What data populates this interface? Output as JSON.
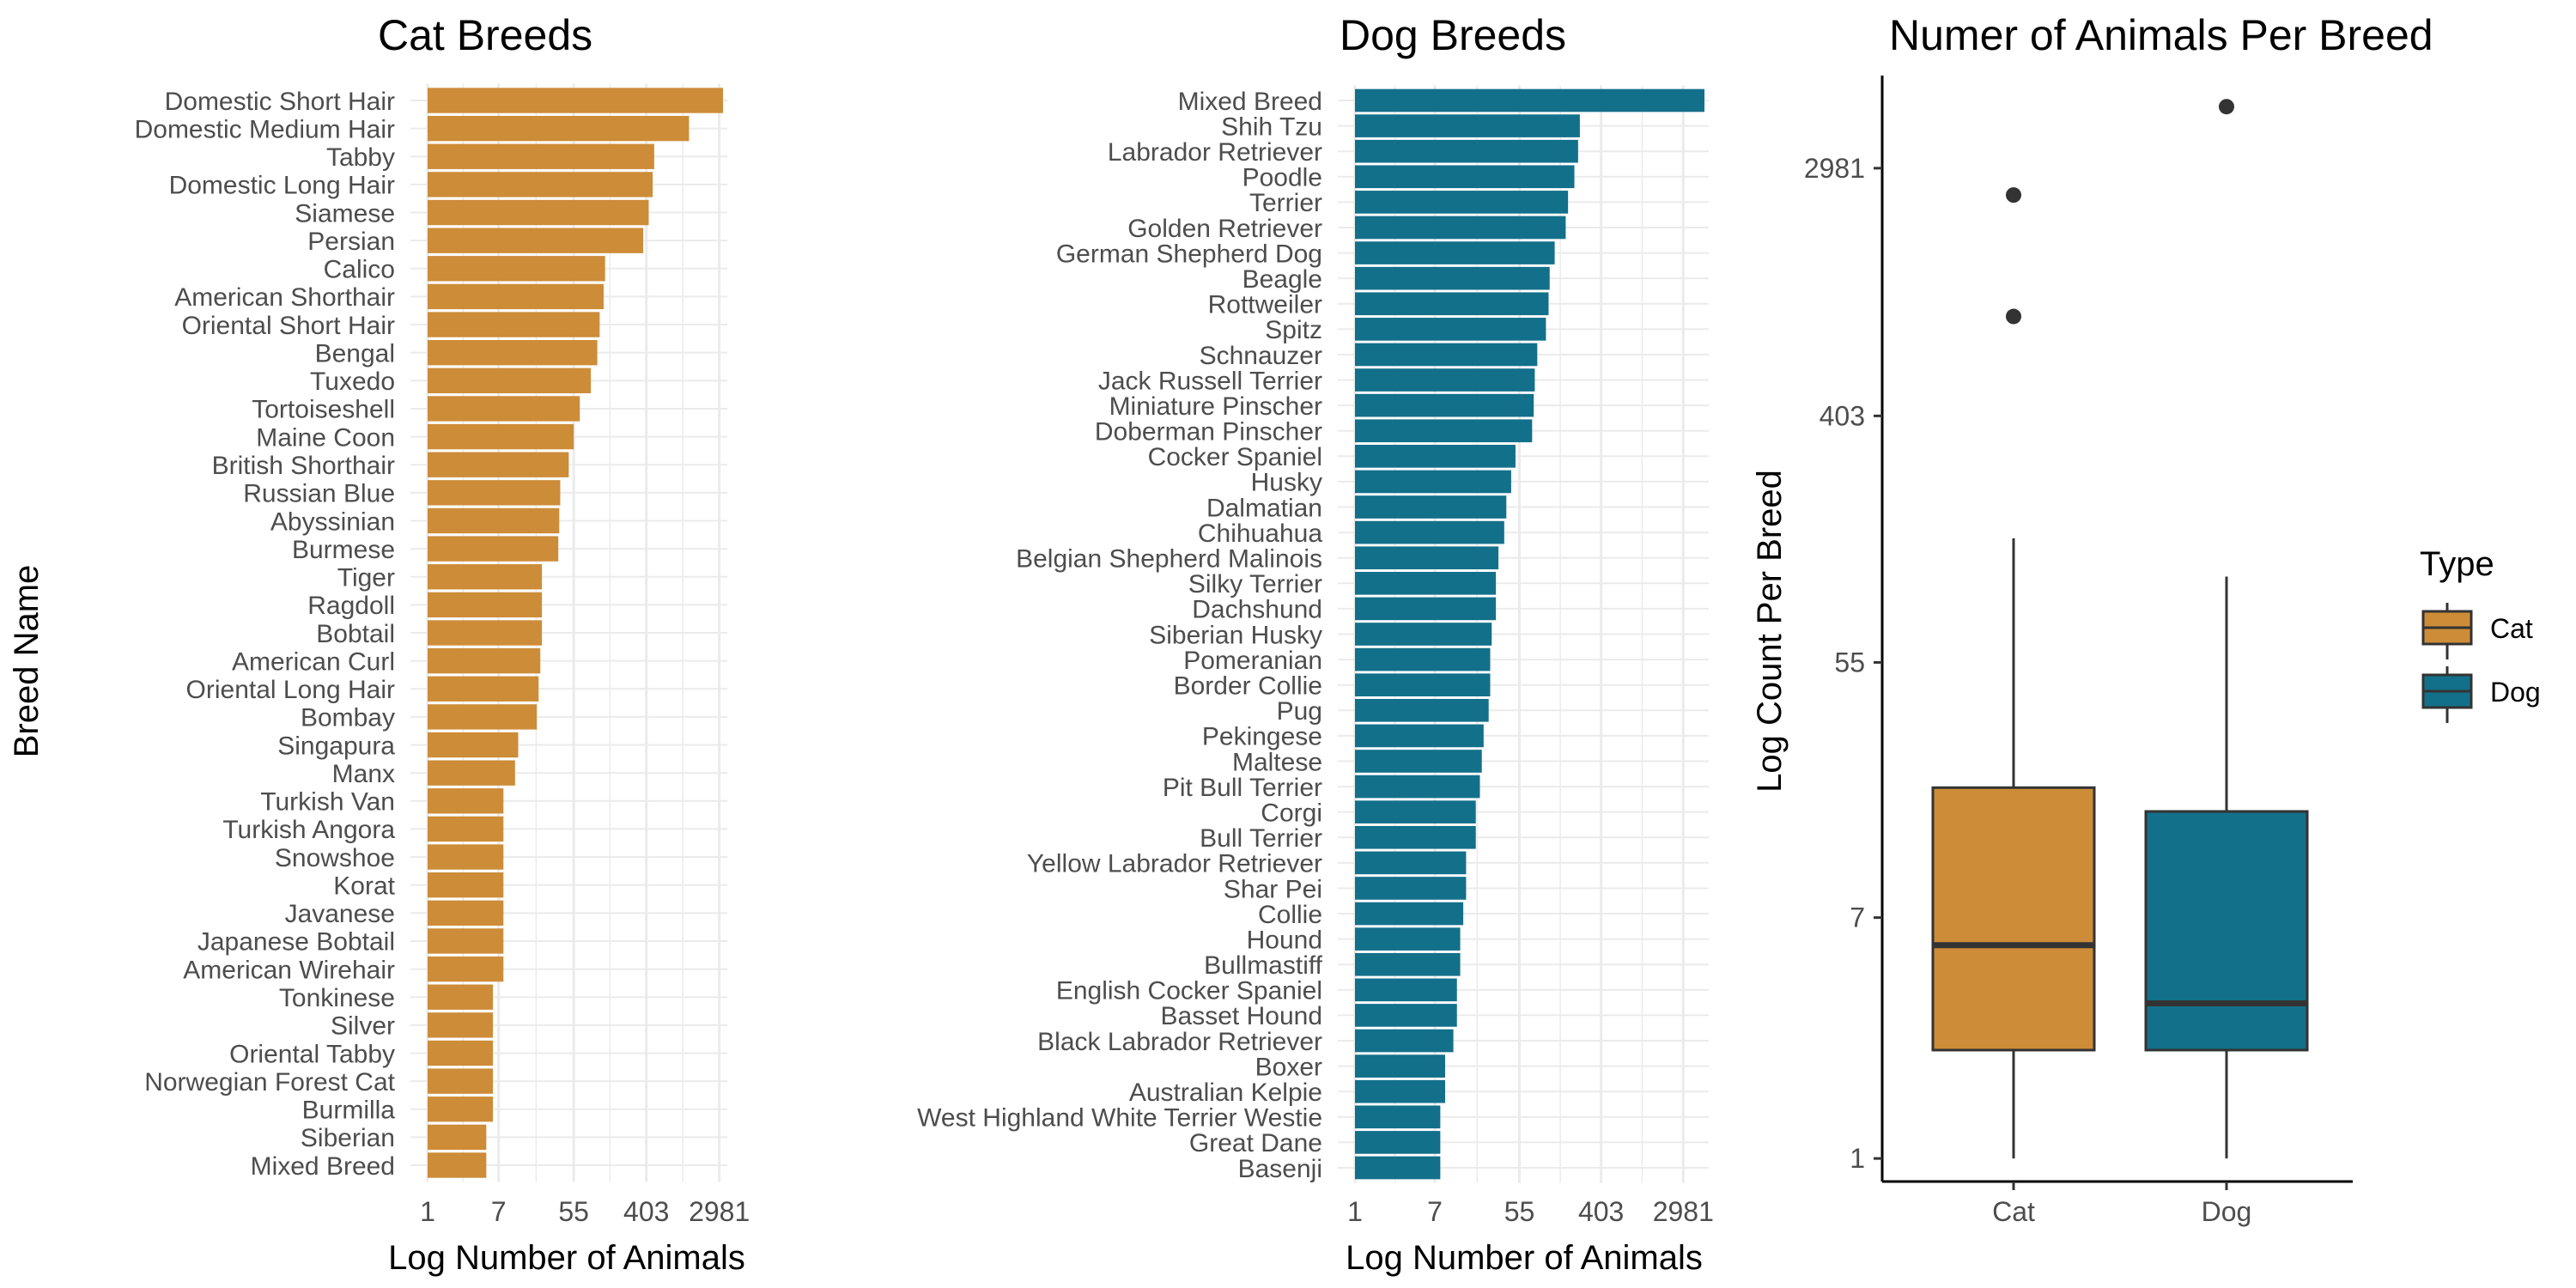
{
  "colors": {
    "cat": "#CD8C38",
    "dog": "#13708A",
    "grid": "#EBEBEB",
    "axis_text": "#4D4D4D",
    "text": "#000000"
  },
  "chart_data": [
    {
      "type": "bar",
      "orientation": "horizontal",
      "title": "Cat Breeds",
      "xlabel": "Log Number of Animals",
      "ylabel": "Breed Name",
      "x_scale": "log",
      "x_ticks": [
        "1",
        "7",
        "55",
        "403",
        "2981"
      ],
      "grid": true,
      "color": "#CD8C38",
      "categories": [
        "Domestic Short Hair",
        "Domestic Medium Hair",
        "Tabby",
        "Domestic Long Hair",
        "Siamese",
        "Persian",
        "Calico",
        "American Shorthair",
        "Oriental Short Hair",
        "Bengal",
        "Tuxedo",
        "Tortoiseshell",
        "Maine Coon",
        "British Shorthair",
        "Russian Blue",
        "Abyssinian",
        "Burmese",
        "Tiger",
        "Ragdoll",
        "Bobtail",
        "American Curl",
        "Oriental Long Hair",
        "Bombay",
        "Singapura",
        "Manx",
        "Turkish Van",
        "Turkish Angora",
        "Snowshoe",
        "Korat",
        "Javanese",
        "Japanese Bobtail",
        "American Wirehair",
        "Tonkinese",
        "Silver",
        "Oriental Tabby",
        "Norwegian Forest Cat",
        "Burmilla",
        "Siberian",
        "Mixed Breed"
      ],
      "values": [
        3300,
        1300,
        500,
        480,
        430,
        370,
        130,
        125,
        112,
        105,
        88,
        65,
        55,
        48,
        38,
        37,
        36,
        23,
        23,
        23,
        22,
        21,
        20,
        12,
        11,
        8,
        8,
        8,
        8,
        8,
        8,
        8,
        6,
        6,
        6,
        6,
        6,
        5,
        5
      ]
    },
    {
      "type": "bar",
      "orientation": "horizontal",
      "title": "Dog Breeds",
      "xlabel": "Log Number of Animals",
      "x_scale": "log",
      "x_ticks": [
        "1",
        "7",
        "55",
        "403",
        "2981"
      ],
      "grid": true,
      "color": "#13708A",
      "categories": [
        "Mixed Breed",
        "Shih Tzu",
        "Labrador Retriever",
        "Poodle",
        "Terrier",
        "Golden Retriever",
        "German Shepherd Dog",
        "Beagle",
        "Rottweiler",
        "Spitz",
        "Schnauzer",
        "Jack Russell Terrier",
        "Miniature Pinscher",
        "Doberman Pinscher",
        "Cocker Spaniel",
        "Husky",
        "Dalmatian",
        "Chihuahua",
        "Belgian Shepherd Malinois",
        "Silky Terrier",
        "Dachshund",
        "Siberian Husky",
        "Pomeranian",
        "Border Collie",
        "Pug",
        "Pekingese",
        "Maltese",
        "Pit Bull Terrier",
        "Corgi",
        "Bull Terrier",
        "Yellow Labrador Retriever",
        "Shar Pei",
        "Collie",
        "Hound",
        "Bullmastiff",
        "English Cocker Spaniel",
        "Basset Hound",
        "Black Labrador Retriever",
        "Boxer",
        "Australian Kelpie",
        "West Highland White Terrier Westie",
        "Great Dane",
        "Basenji"
      ],
      "values": [
        5000,
        240,
        230,
        210,
        180,
        170,
        130,
        115,
        112,
        105,
        85,
        80,
        78,
        75,
        50,
        45,
        40,
        38,
        33,
        31,
        31,
        28,
        27,
        27,
        26,
        23,
        22,
        21,
        19,
        19,
        15,
        15,
        14,
        13,
        13,
        12,
        12,
        11,
        9,
        9,
        8,
        8,
        8
      ]
    },
    {
      "type": "box",
      "title": "Numer of Animals Per Breed",
      "xlabel": "",
      "ylabel": "Log Count Per Breed",
      "y_scale": "log",
      "y_ticks": [
        "1",
        "7",
        "55",
        "403",
        "2981"
      ],
      "grid": false,
      "legend": {
        "title": "Type",
        "position": "right",
        "entries": [
          "Cat",
          "Dog"
        ]
      },
      "categories": [
        "Cat",
        "Dog"
      ],
      "boxes": [
        {
          "name": "Cat",
          "color": "#CD8C38",
          "min": 1,
          "q1": 2.4,
          "median": 5.6,
          "q3": 20,
          "max": 150,
          "outliers": [
            2400,
            900
          ]
        },
        {
          "name": "Dog",
          "color": "#13708A",
          "min": 1,
          "q1": 2.4,
          "median": 3.5,
          "q3": 16.5,
          "max": 110,
          "outliers": [
            4900
          ]
        }
      ]
    }
  ]
}
